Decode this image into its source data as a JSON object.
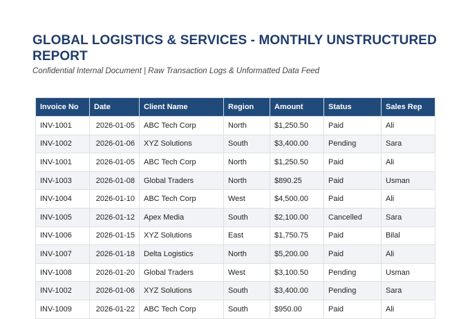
{
  "report": {
    "title": "GLOBAL LOGISTICS & SERVICES - MONTHLY UNSTRUCTURED REPORT",
    "subtitle": "Confidential Internal Document | Raw Transaction Logs & Unformatted Data Feed"
  },
  "table": {
    "header": {
      "invoice": "Invoice No",
      "date": "Date",
      "client": "Client Name",
      "region": "Region",
      "amount": "Amount",
      "status": "Status",
      "rep": "Sales Rep"
    },
    "header_bg": "#1f4a7a",
    "rows": [
      {
        "invoice": "INV-1001",
        "date": "2026-01-05",
        "client": "ABC Tech Corp",
        "region": "North",
        "amount": "$1,250.50",
        "status": "Paid",
        "rep": "Ali"
      },
      {
        "invoice": "INV-1002",
        "date": "2026-01-06",
        "client": "XYZ Solutions",
        "region": "South",
        "amount": "$3,400.00",
        "status": "Pending",
        "rep": "Sara"
      },
      {
        "invoice": "INV-1001",
        "date": "2026-01-05",
        "client": "ABC Tech Corp",
        "region": "North",
        "amount": "$1,250.50",
        "status": "Paid",
        "rep": "Ali"
      },
      {
        "invoice": "INV-1003",
        "date": "2026-01-08",
        "client": "Global Traders",
        "region": "North",
        "amount": "$890.25",
        "status": "Paid",
        "rep": "Usman"
      },
      {
        "invoice": "INV-1004",
        "date": "2026-01-10",
        "client": "ABC Tech Corp",
        "region": "West",
        "amount": "$4,500.00",
        "status": "Paid",
        "rep": "Ali"
      },
      {
        "invoice": "INV-1005",
        "date": "2026-01-12",
        "client": "Apex Media",
        "region": "South",
        "amount": "$2,100.00",
        "status": "Cancelled",
        "rep": "Sara"
      },
      {
        "invoice": "INV-1006",
        "date": "2026-01-15",
        "client": "XYZ Solutions",
        "region": "East",
        "amount": "$1,750.75",
        "status": "Paid",
        "rep": "Bilal"
      },
      {
        "invoice": "INV-1007",
        "date": "2026-01-18",
        "client": "Delta Logistics",
        "region": "North",
        "amount": "$5,200.00",
        "status": "Paid",
        "rep": "Ali"
      },
      {
        "invoice": "INV-1008",
        "date": "2026-01-20",
        "client": "Global Traders",
        "region": "West",
        "amount": "$3,100.50",
        "status": "Pending",
        "rep": "Usman"
      },
      {
        "invoice": "INV-1002",
        "date": "2026-01-06",
        "client": "XYZ Solutions",
        "region": "South",
        "amount": "$3,400.00",
        "status": "Pending",
        "rep": "Sara"
      },
      {
        "invoice": "INV-1009",
        "date": "2026-01-22",
        "client": "ABC Tech Corp",
        "region": "South",
        "amount": "$950.00",
        "status": "Paid",
        "rep": "Ali"
      }
    ]
  }
}
